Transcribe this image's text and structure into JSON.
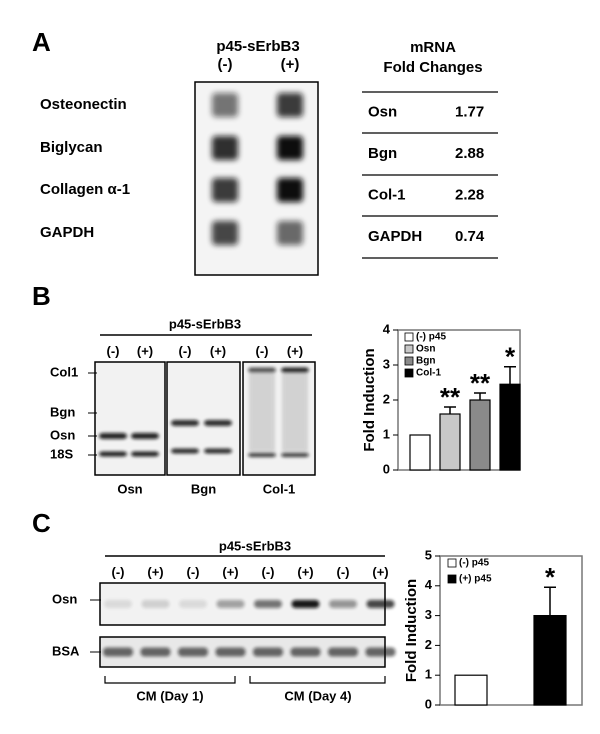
{
  "panel_a": {
    "label": "A",
    "blot_title": "p45-sErbB3",
    "lanes": [
      "(-)",
      "(+)"
    ],
    "rows": [
      "Osteonectin",
      "Biglycan",
      "Collagen α-1",
      "GAPDH"
    ],
    "table": {
      "header": [
        "mRNA",
        "Fold Changes"
      ],
      "rows": [
        [
          "Osn",
          "1.77"
        ],
        [
          "Bgn",
          "2.88"
        ],
        [
          "Col-1",
          "2.28"
        ],
        [
          "GAPDH",
          "0.74"
        ]
      ]
    }
  },
  "panel_b": {
    "label": "B",
    "blot_title": "p45-sErbB3",
    "lanes": [
      "(-)",
      "(+)",
      "(-)",
      "(+)",
      "(-)",
      "(+)"
    ],
    "band_labels": [
      "Col1",
      "Bgn",
      "Osn",
      "18S"
    ],
    "blot_names": [
      "Osn",
      "Bgn",
      "Col-1"
    ]
  },
  "panel_c": {
    "label": "C",
    "blot_title": "p45-sErbB3",
    "lanes": [
      "(-)",
      "(+)",
      "(-)",
      "(+)",
      "(-)",
      "(+)",
      "(-)",
      "(+)"
    ],
    "band_labels": [
      "Osn",
      "BSA"
    ],
    "groups": [
      "CM (Day 1)",
      "CM (Day 4)"
    ]
  },
  "chart_data": [
    {
      "type": "bar",
      "y_label": "Fold Induction",
      "ylim": [
        0,
        4
      ],
      "yticks": [
        0,
        1,
        2,
        3,
        4
      ],
      "series": [
        {
          "name": "(-) p45",
          "color": "#ffffff",
          "values": [
            1
          ]
        },
        {
          "name": "Osn",
          "color": "#c8c8c8",
          "values": [
            1.6
          ],
          "errors": [
            0.2
          ],
          "annotation": "**"
        },
        {
          "name": "Bgn",
          "color": "#8a8a8a",
          "values": [
            2.0
          ],
          "errors": [
            0.2
          ],
          "annotation": "**"
        },
        {
          "name": "Col-1",
          "color": "#000000",
          "values": [
            2.45
          ],
          "errors": [
            0.5
          ],
          "annotation": "*"
        }
      ]
    },
    {
      "type": "bar",
      "y_label": "Fold Induction",
      "ylim": [
        0,
        5
      ],
      "yticks": [
        0,
        1,
        2,
        3,
        4,
        5
      ],
      "series": [
        {
          "name": "(-) p45",
          "color": "#ffffff",
          "values": [
            1
          ]
        },
        {
          "name": "(+) p45",
          "color": "#000000",
          "values": [
            3.0
          ],
          "errors": [
            0.95
          ],
          "annotation": "*"
        }
      ]
    }
  ]
}
